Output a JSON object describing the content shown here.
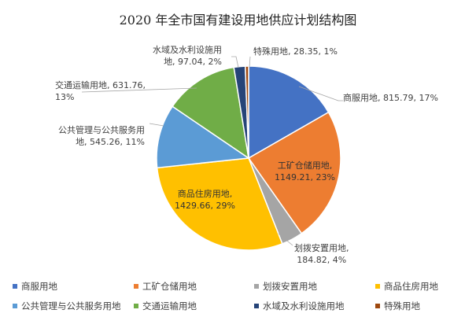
{
  "chart_data": {
    "type": "pie",
    "title": "2020 年全市国有建设用地供应计划结构图",
    "categories": [
      "商服用地",
      "工矿仓储用地",
      "划拨安置用地",
      "商品住房用地",
      "公共管理与公共服务用地",
      "交通运输用地",
      "水域及水利设施用地",
      "特殊用地"
    ],
    "values": [
      815.79,
      1149.21,
      184.82,
      1429.66,
      545.26,
      631.76,
      97.04,
      28.35
    ],
    "percents": [
      "17%",
      "23%",
      "4%",
      "29%",
      "11%",
      "13%",
      "2%",
      "1%"
    ],
    "colors": [
      "#4472C4",
      "#ED7D31",
      "#A5A5A5",
      "#FFC000",
      "#5B9BD5",
      "#70AD47",
      "#264478",
      "#9E480E"
    ],
    "start_angle": "12 o'clock, clockwise",
    "legend_position": "bottom",
    "data_labels": [
      [
        "商服用地, 815.79, 17%"
      ],
      [
        "工矿仓储用地,",
        "1149.21, 23%"
      ],
      [
        "划拨安置用地,",
        "184.82, 4%"
      ],
      [
        "商品住房用地,",
        "1429.66, 29%"
      ],
      [
        "公共管理与公共服务用",
        "地, 545.26, 11%"
      ],
      [
        "交通运输用地, 631.76,",
        "13%"
      ],
      [
        "水域及水利设施用",
        "地, 97.04, 2%"
      ],
      [
        "特殊用地, 28.35, 1%"
      ]
    ]
  }
}
